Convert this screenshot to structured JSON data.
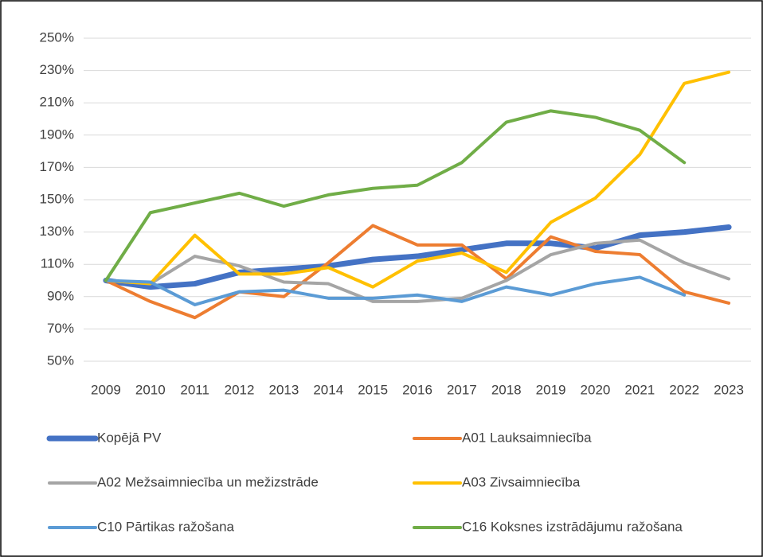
{
  "chart_data": {
    "type": "line",
    "categories": [
      "2009",
      "2010",
      "2011",
      "2012",
      "2013",
      "2014",
      "2015",
      "2016",
      "2017",
      "2018",
      "2019",
      "2020",
      "2021",
      "2022",
      "2023"
    ],
    "series": [
      {
        "name": "Kopējā PV",
        "color": "#4472c4",
        "width": 7,
        "values": [
          100,
          96,
          98,
          105,
          107,
          109,
          113,
          115,
          119,
          123,
          123,
          120,
          128,
          130,
          133
        ]
      },
      {
        "name": "A01 Lauksaimniecība",
        "color": "#ed7d31",
        "width": 4,
        "values": [
          100,
          87,
          77,
          93,
          90,
          111,
          134,
          122,
          122,
          101,
          127,
          118,
          116,
          93,
          86
        ]
      },
      {
        "name": "A02 Mežsaimniecība un mežizstrāde",
        "color": "#a5a5a5",
        "width": 4,
        "values": [
          100,
          98,
          115,
          109,
          99,
          98,
          87,
          87,
          89,
          100,
          116,
          123,
          125,
          111,
          101
        ]
      },
      {
        "name": "A03 Zivsaimniecība",
        "color": "#ffc000",
        "width": 4,
        "values": [
          100,
          98,
          128,
          104,
          104,
          108,
          96,
          112,
          117,
          105,
          136,
          151,
          178,
          222,
          229
        ]
      },
      {
        "name": "C10 Pārtikas ražošana",
        "color": "#5b9bd5",
        "width": 4,
        "values": [
          100,
          99,
          85,
          93,
          94,
          89,
          89,
          91,
          87,
          96,
          91,
          98,
          102,
          91,
          null
        ]
      },
      {
        "name": "C16 Koksnes izstrādājumu ražošana",
        "color": "#70ad47",
        "width": 4,
        "values": [
          100,
          142,
          148,
          154,
          146,
          153,
          157,
          159,
          173,
          198,
          205,
          201,
          193,
          173,
          null
        ]
      }
    ],
    "ylim": [
      50,
      250
    ],
    "yticks": [
      {
        "value": 50,
        "label": "50%"
      },
      {
        "value": 70,
        "label": "70%"
      },
      {
        "value": 90,
        "label": "90%"
      },
      {
        "value": 110,
        "label": "110%"
      },
      {
        "value": 130,
        "label": "130%"
      },
      {
        "value": 150,
        "label": "150%"
      },
      {
        "value": 170,
        "label": "170%"
      },
      {
        "value": 190,
        "label": "190%"
      },
      {
        "value": 210,
        "label": "210%"
      },
      {
        "value": 230,
        "label": "230%"
      },
      {
        "value": 250,
        "label": "250%"
      }
    ],
    "grid": true,
    "legend": "bottom"
  }
}
